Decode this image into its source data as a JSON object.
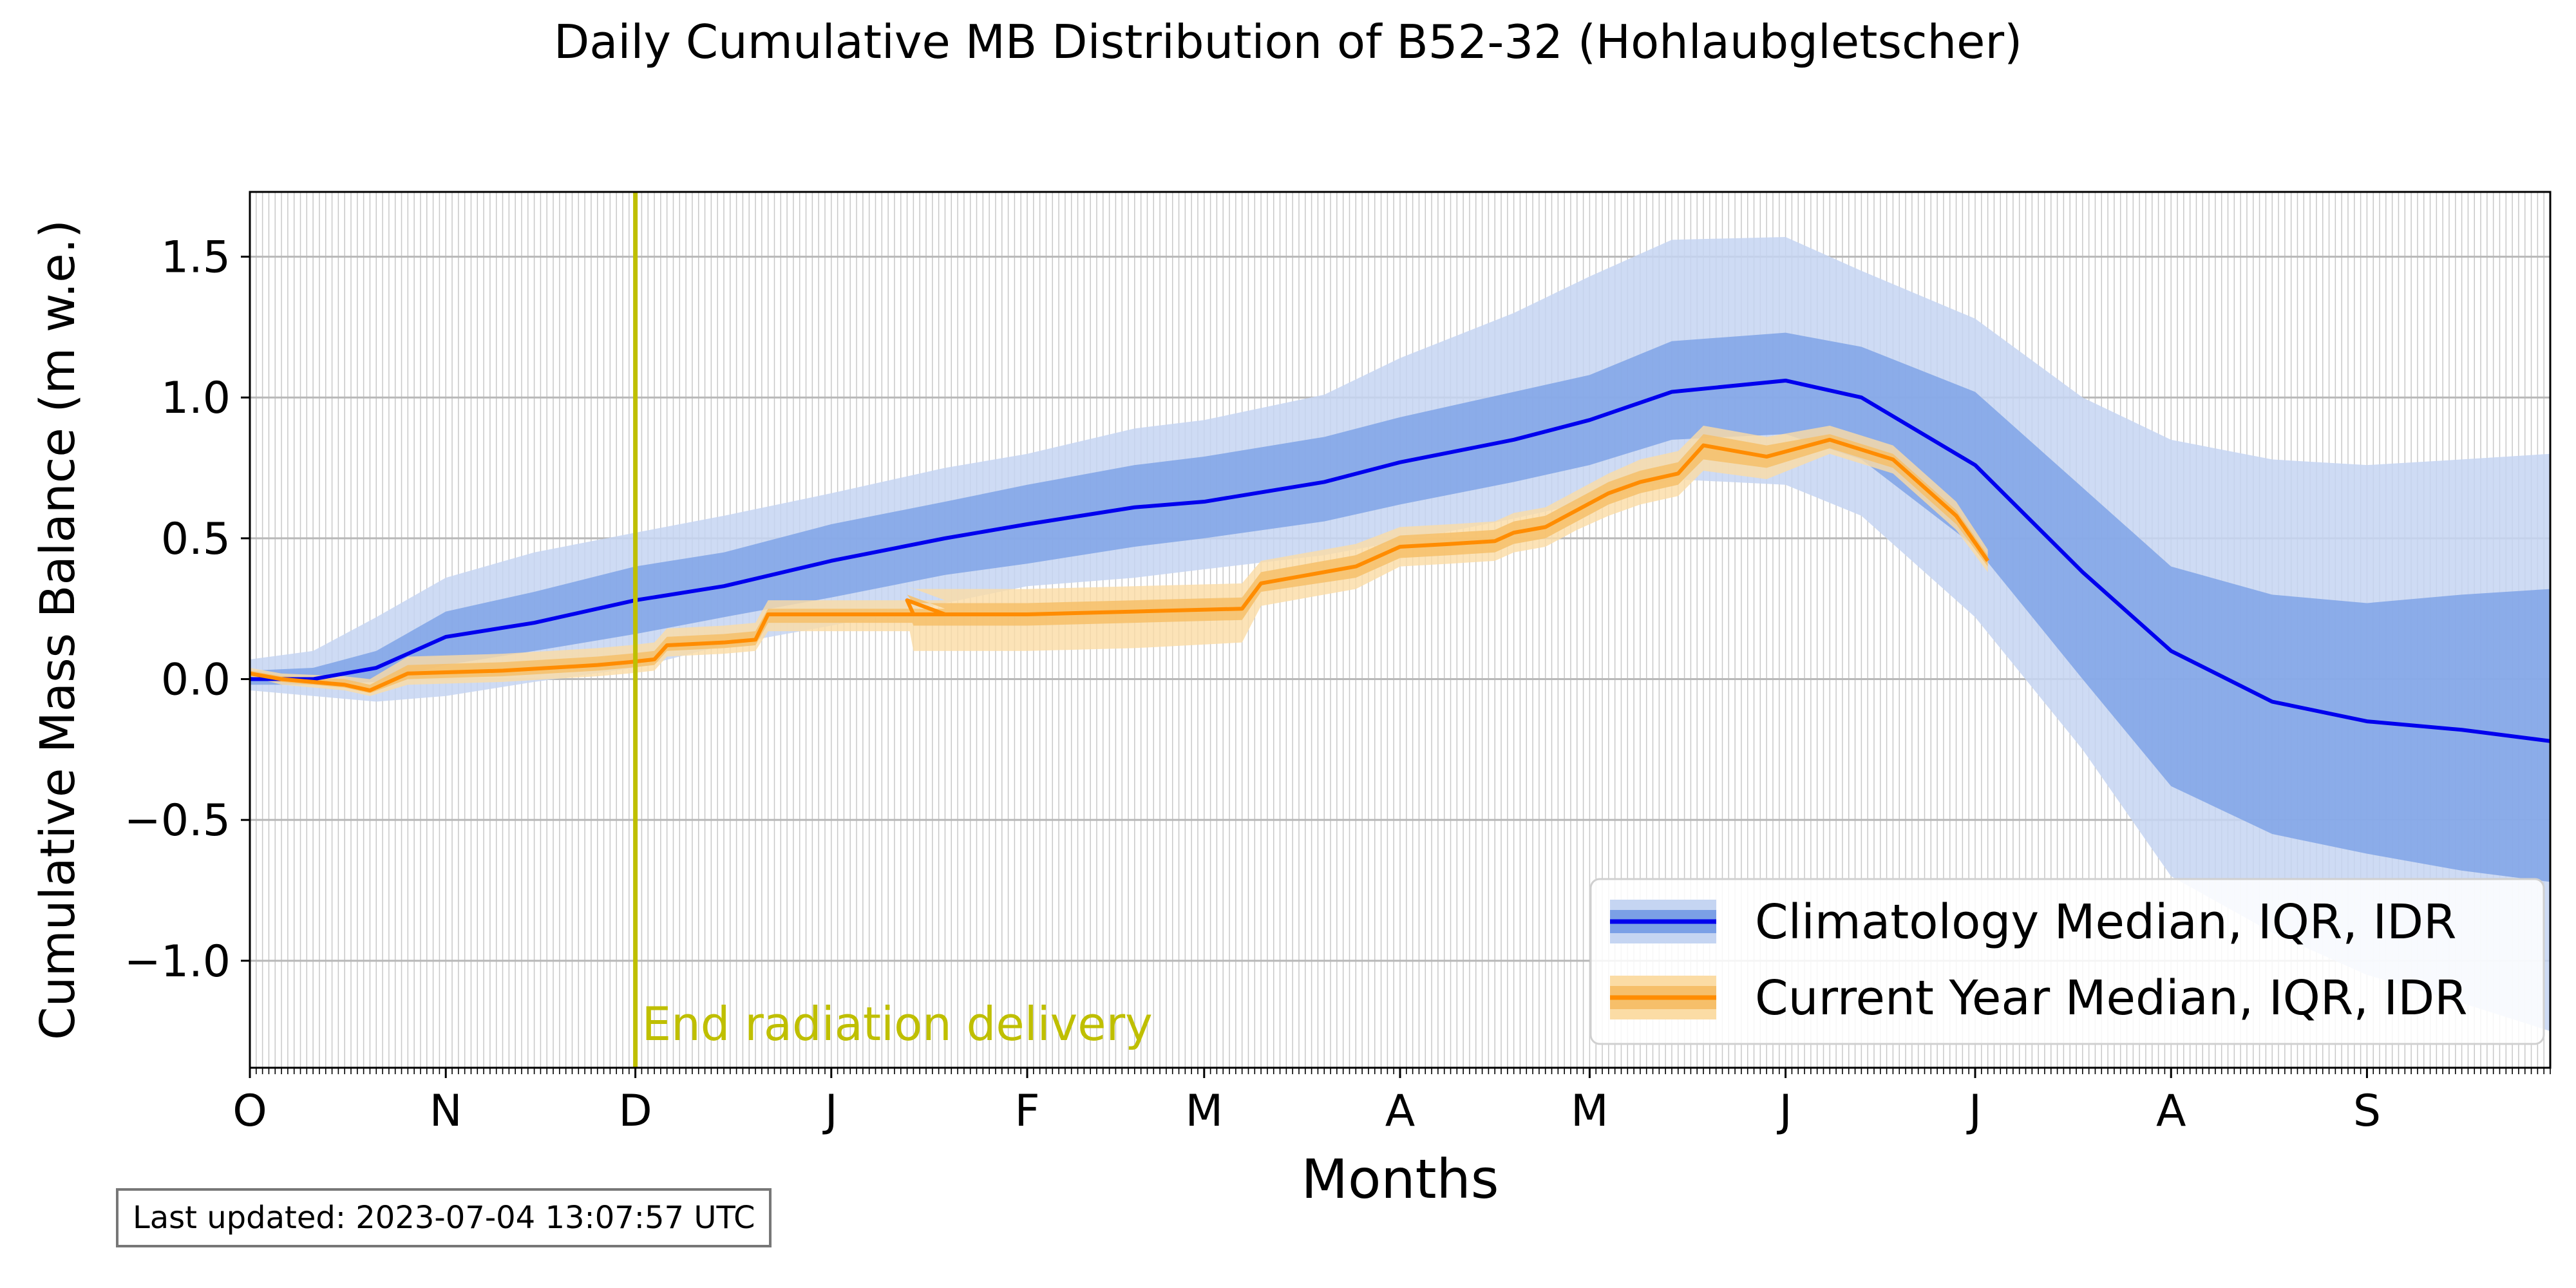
{
  "chart_data": {
    "type": "line",
    "title": "Daily Cumulative MB Distribution of B52-32 (Hohlaubgletscher)",
    "xlabel": "Months",
    "ylabel": "Cumulative Mass Balance (m w.e.)",
    "ylim": [
      -1.38,
      1.73
    ],
    "xlim": [
      0,
      364
    ],
    "y_ticks": [
      -1.0,
      -0.5,
      0.0,
      0.5,
      1.0,
      1.5
    ],
    "y_tick_labels": [
      "−1.0",
      "−0.5",
      "0.0",
      "0.5",
      "1.0",
      "1.5"
    ],
    "month_ticks": [
      0,
      31,
      61,
      92,
      123,
      151,
      182,
      212,
      243,
      273,
      304,
      335
    ],
    "month_labels": [
      "O",
      "N",
      "D",
      "J",
      "F",
      "M",
      "A",
      "M",
      "J",
      "J",
      "A",
      "S"
    ],
    "grid": true,
    "legend_position": "bottom-right",
    "annotation": {
      "x": 61,
      "text": "End radiation delivery",
      "color": "#bfbf00"
    },
    "series": [
      {
        "name": "Climatology Median, IQR, IDR",
        "color": "#0000ee",
        "iqr_color": "#7ba0e6",
        "idr_color": "#c5d5f2",
        "x": [
          0,
          10,
          20,
          31,
          45,
          61,
          75,
          92,
          110,
          123,
          140,
          151,
          170,
          182,
          200,
          212,
          225,
          243,
          255,
          273,
          290,
          304,
          320,
          335,
          350,
          364
        ],
        "median": [
          0.0,
          0.0,
          0.04,
          0.15,
          0.2,
          0.28,
          0.33,
          0.42,
          0.5,
          0.55,
          0.61,
          0.63,
          0.7,
          0.77,
          0.85,
          0.92,
          1.02,
          1.06,
          1.0,
          0.76,
          0.38,
          0.1,
          -0.08,
          -0.15,
          -0.18,
          -0.22
        ],
        "iqr_low": [
          -0.02,
          -0.02,
          -0.01,
          0.05,
          0.1,
          0.16,
          0.22,
          0.29,
          0.37,
          0.41,
          0.47,
          0.5,
          0.56,
          0.62,
          0.7,
          0.76,
          0.85,
          0.87,
          0.78,
          0.47,
          0.0,
          -0.38,
          -0.55,
          -0.62,
          -0.68,
          -0.72
        ],
        "iqr_high": [
          0.03,
          0.04,
          0.1,
          0.24,
          0.31,
          0.4,
          0.45,
          0.55,
          0.63,
          0.69,
          0.76,
          0.79,
          0.86,
          0.93,
          1.02,
          1.08,
          1.2,
          1.23,
          1.18,
          1.02,
          0.68,
          0.4,
          0.3,
          0.27,
          0.3,
          0.32
        ],
        "idr_low": [
          -0.04,
          -0.06,
          -0.08,
          -0.06,
          -0.01,
          0.04,
          0.12,
          0.19,
          0.27,
          0.33,
          0.36,
          0.39,
          0.44,
          0.49,
          0.57,
          0.63,
          0.71,
          0.69,
          0.58,
          0.22,
          -0.25,
          -0.7,
          -0.9,
          -1.05,
          -1.15,
          -1.25
        ],
        "idr_high": [
          0.07,
          0.1,
          0.22,
          0.36,
          0.45,
          0.52,
          0.58,
          0.66,
          0.75,
          0.8,
          0.89,
          0.92,
          1.01,
          1.14,
          1.3,
          1.43,
          1.56,
          1.57,
          1.45,
          1.28,
          1.0,
          0.85,
          0.78,
          0.76,
          0.78,
          0.8
        ]
      },
      {
        "name": "Current Year Median, IQR, IDR",
        "color": "#ff8c00",
        "iqr_color": "#f6bf6a",
        "idr_color": "#fbdca5",
        "x": [
          0,
          5,
          15,
          19,
          25,
          40,
          55,
          60,
          64,
          66,
          75,
          80,
          82,
          110,
          104,
          105,
          123,
          140,
          157,
          160,
          175,
          182,
          190,
          197,
          200,
          205,
          210,
          215,
          220,
          226,
          230,
          240,
          250,
          260,
          270,
          275
        ],
        "median": [
          0.02,
          0.0,
          -0.02,
          -0.04,
          0.02,
          0.03,
          0.05,
          0.06,
          0.07,
          0.12,
          0.13,
          0.14,
          0.23,
          0.23,
          0.28,
          0.23,
          0.23,
          0.24,
          0.25,
          0.34,
          0.4,
          0.47,
          0.48,
          0.49,
          0.52,
          0.54,
          0.6,
          0.66,
          0.7,
          0.73,
          0.83,
          0.79,
          0.85,
          0.78,
          0.58,
          0.42
        ],
        "iqr_low": [
          0.02,
          -0.01,
          -0.03,
          -0.05,
          0.0,
          0.01,
          0.03,
          0.04,
          0.05,
          0.1,
          0.11,
          0.12,
          0.2,
          0.2,
          0.25,
          0.19,
          0.19,
          0.2,
          0.21,
          0.31,
          0.36,
          0.43,
          0.44,
          0.45,
          0.48,
          0.5,
          0.56,
          0.62,
          0.66,
          0.69,
          0.78,
          0.75,
          0.82,
          0.75,
          0.55,
          0.4
        ],
        "iqr_high": [
          0.03,
          0.01,
          0.0,
          -0.02,
          0.05,
          0.06,
          0.08,
          0.09,
          0.1,
          0.15,
          0.16,
          0.17,
          0.25,
          0.25,
          0.3,
          0.27,
          0.27,
          0.28,
          0.29,
          0.38,
          0.44,
          0.51,
          0.52,
          0.53,
          0.56,
          0.58,
          0.64,
          0.7,
          0.74,
          0.77,
          0.87,
          0.83,
          0.87,
          0.8,
          0.6,
          0.44
        ],
        "idr_low": [
          0.01,
          -0.02,
          -0.04,
          -0.06,
          -0.02,
          -0.01,
          0.01,
          0.02,
          0.03,
          0.08,
          0.09,
          0.1,
          0.17,
          0.17,
          0.22,
          0.1,
          0.1,
          0.11,
          0.13,
          0.26,
          0.32,
          0.4,
          0.41,
          0.42,
          0.45,
          0.47,
          0.53,
          0.58,
          0.62,
          0.65,
          0.74,
          0.71,
          0.8,
          0.73,
          0.53,
          0.38
        ],
        "idr_high": [
          0.04,
          0.02,
          0.01,
          0.0,
          0.08,
          0.09,
          0.11,
          0.12,
          0.13,
          0.18,
          0.19,
          0.2,
          0.28,
          0.28,
          0.33,
          0.32,
          0.32,
          0.33,
          0.34,
          0.42,
          0.48,
          0.54,
          0.55,
          0.56,
          0.59,
          0.61,
          0.67,
          0.73,
          0.78,
          0.81,
          0.9,
          0.86,
          0.9,
          0.83,
          0.63,
          0.46
        ]
      }
    ]
  },
  "footer": {
    "last_updated": "Last updated: 2023-07-04 13:07:57 UTC"
  }
}
